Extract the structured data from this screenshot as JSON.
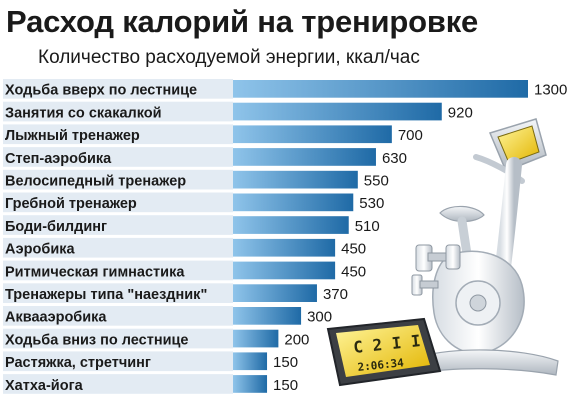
{
  "title": "Расход калорий на тренировке",
  "subtitle": "Количество расходуемой энергии, ккал/час",
  "colors": {
    "bar_light": "#8fc4ea",
    "bar_dark": "#1f6aa6",
    "row_bg": "#e3ebf3"
  },
  "chart_data": {
    "type": "bar",
    "orientation": "horizontal",
    "title": "Расход калорий на тренировке",
    "subtitle": "Количество расходуемой энергии, ккал/час",
    "xlim": [
      0,
      1300
    ],
    "categories": [
      "Ходьба вверх по лестнице",
      "Занятия со скакалкой",
      "Лыжный тренажер",
      "Степ-аэробика",
      "Велосипедный тренажер",
      "Гребной тренажер",
      "Боди-билдинг",
      "Аэробика",
      "Ритмическая гимнастика",
      "Тренажеры типа \"наездник\"",
      "Аквааэробика",
      "Ходьба вниз по лестнице",
      "Растяжка, стретчинг",
      "Хатха-йога"
    ],
    "values": [
      1300,
      920,
      700,
      630,
      550,
      530,
      510,
      450,
      450,
      370,
      300,
      200,
      150,
      150
    ],
    "value_labels": [
      "1300",
      "920",
      "700",
      "630",
      "550",
      "530",
      "510",
      "450",
      "450",
      "370",
      "300",
      "200",
      "150",
      "150"
    ]
  },
  "illustration": {
    "name": "exercise-bike",
    "display": {
      "line1": "C 2 I I",
      "line2": "2:06:34"
    }
  }
}
